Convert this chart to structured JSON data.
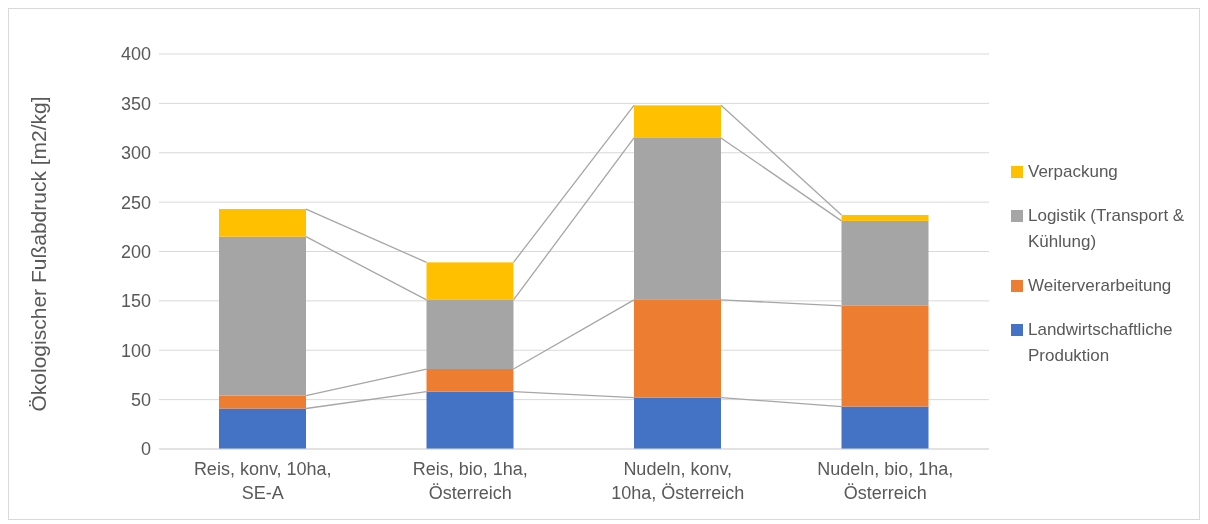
{
  "chart_data": {
    "type": "bar",
    "stacked": true,
    "ylabel": "Ökologischer Fußabdruck [m2/kg]",
    "categories": [
      "Reis, konv, 10ha, SE-A",
      "Reis, bio, 1ha, Österreich",
      "Nudeln, konv, 10ha, Österreich",
      "Nudeln, bio, 1ha, Österreich"
    ],
    "series": [
      {
        "name": "Landwirtschaftliche Produktion",
        "color": "#4472c4",
        "values": [
          41,
          58,
          52,
          43
        ]
      },
      {
        "name": "Weiterverarbeitung",
        "color": "#ed7d31",
        "values": [
          13,
          23,
          99,
          102
        ]
      },
      {
        "name": "Logistik (Transport & Kühlung)",
        "color": "#a5a5a5",
        "values": [
          161,
          70,
          164,
          86
        ]
      },
      {
        "name": "Verpackung",
        "color": "#ffc000",
        "values": [
          28,
          38,
          33,
          6
        ]
      }
    ],
    "ylim": [
      0,
      400
    ],
    "yticks": [
      0,
      50,
      100,
      150,
      200,
      250,
      300,
      350,
      400
    ],
    "grid": "y",
    "legend": "right"
  }
}
